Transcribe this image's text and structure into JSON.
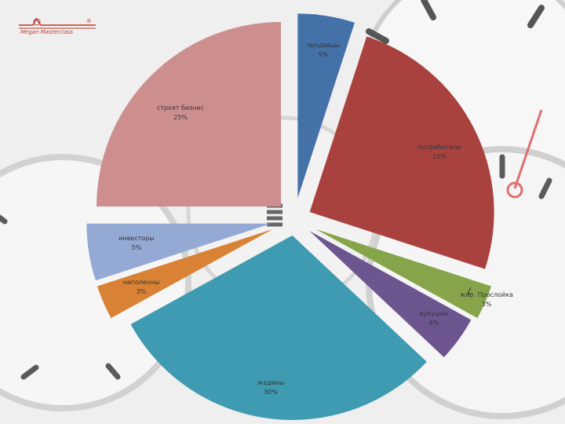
{
  "logo": {
    "brand_text": "Megan Masterclass"
  },
  "chart_data": {
    "type": "pie",
    "title": "",
    "exploded": true,
    "slices": [
      {
        "label": "продавцы",
        "percent_label": "5%",
        "value": 5,
        "color": "#4472a8"
      },
      {
        "label": "потребители",
        "percent_label": "25%",
        "value": 25,
        "color": "#a9423f"
      },
      {
        "label": "жир. Прослойка",
        "percent_label": "3%",
        "value": 3,
        "color": "#86a54a"
      },
      {
        "label": "кукушки",
        "percent_label": "4%",
        "value": 4,
        "color": "#6d5690"
      },
      {
        "label": "жадины",
        "percent_label": "30%",
        "value": 30,
        "color": "#3f9bb1"
      },
      {
        "label": "наполеоны",
        "percent_label": "3%",
        "value": 3,
        "color": "#d98236"
      },
      {
        "label": "инвесторы",
        "percent_label": "5%",
        "value": 5,
        "color": "#94aad5"
      },
      {
        "label": "строят бизнес",
        "percent_label": "25%",
        "value": 25,
        "color": "#cc8f8d"
      }
    ]
  }
}
